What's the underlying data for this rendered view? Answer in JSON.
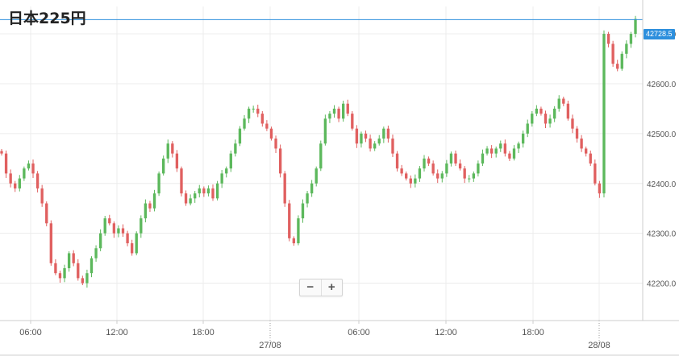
{
  "header": {
    "title": "日本225円"
  },
  "price_badge": {
    "label": "42728.5"
  },
  "zoom": {
    "minus": "−",
    "plus": "+"
  },
  "colors": {
    "up": "#5cb85c",
    "down": "#e06060",
    "price_line": "#2d8fdd",
    "grid": "#ececec",
    "axis": "#cccccc",
    "text": "#555555"
  },
  "chart_data": {
    "type": "candlestick",
    "title": "日本225円",
    "ylim": [
      42125,
      42755
    ],
    "yticks": [
      42200,
      42300,
      42400,
      42500,
      42600,
      42700
    ],
    "ytick_labels": [
      "42200.0",
      "42300.0",
      "42400.0",
      "42500.0",
      "42600.0",
      "42700.0"
    ],
    "xticks": [
      {
        "label": "06:00",
        "date": false
      },
      {
        "label": "12:00",
        "date": false
      },
      {
        "label": "18:00",
        "date": false
      },
      {
        "label": "27/08",
        "date": true
      },
      {
        "label": "06:00",
        "date": false
      },
      {
        "label": "12:00",
        "date": false
      },
      {
        "label": "18:00",
        "date": false
      },
      {
        "label": "28/08",
        "date": true
      }
    ],
    "current_price": 42728.5,
    "close": [
      42460,
      42420,
      42400,
      42390,
      42410,
      42430,
      42440,
      42420,
      42390,
      42360,
      42320,
      42240,
      42220,
      42210,
      42230,
      42260,
      42240,
      42210,
      42200,
      42220,
      42250,
      42270,
      42300,
      42330,
      42320,
      42300,
      42310,
      42300,
      42280,
      42260,
      42300,
      42330,
      42360,
      42350,
      42380,
      42420,
      42450,
      42480,
      42460,
      42430,
      42380,
      42360,
      42370,
      42380,
      42390,
      42380,
      42390,
      42370,
      42400,
      42420,
      42430,
      42460,
      42480,
      42510,
      42530,
      42550,
      42550,
      42540,
      42520,
      42510,
      42490,
      42470,
      42420,
      42360,
      42290,
      42280,
      42330,
      42360,
      42380,
      42400,
      42430,
      42480,
      42530,
      42540,
      42550,
      42530,
      42560,
      42540,
      42510,
      42480,
      42500,
      42490,
      42470,
      42480,
      42490,
      42510,
      42490,
      42460,
      42430,
      42420,
      42410,
      42400,
      42410,
      42430,
      42450,
      42440,
      42420,
      42410,
      42420,
      42440,
      42460,
      42440,
      42430,
      42410,
      42410,
      42420,
      42440,
      42460,
      42470,
      42460,
      42470,
      42480,
      42460,
      42450,
      42470,
      42480,
      42500,
      42520,
      42540,
      42550,
      42540,
      42520,
      42530,
      42550,
      42570,
      42560,
      42530,
      42510,
      42490,
      42470,
      42460,
      42440,
      42400,
      42380,
      42700,
      42680,
      42640,
      42630,
      42660,
      42680,
      42700,
      42730
    ]
  }
}
